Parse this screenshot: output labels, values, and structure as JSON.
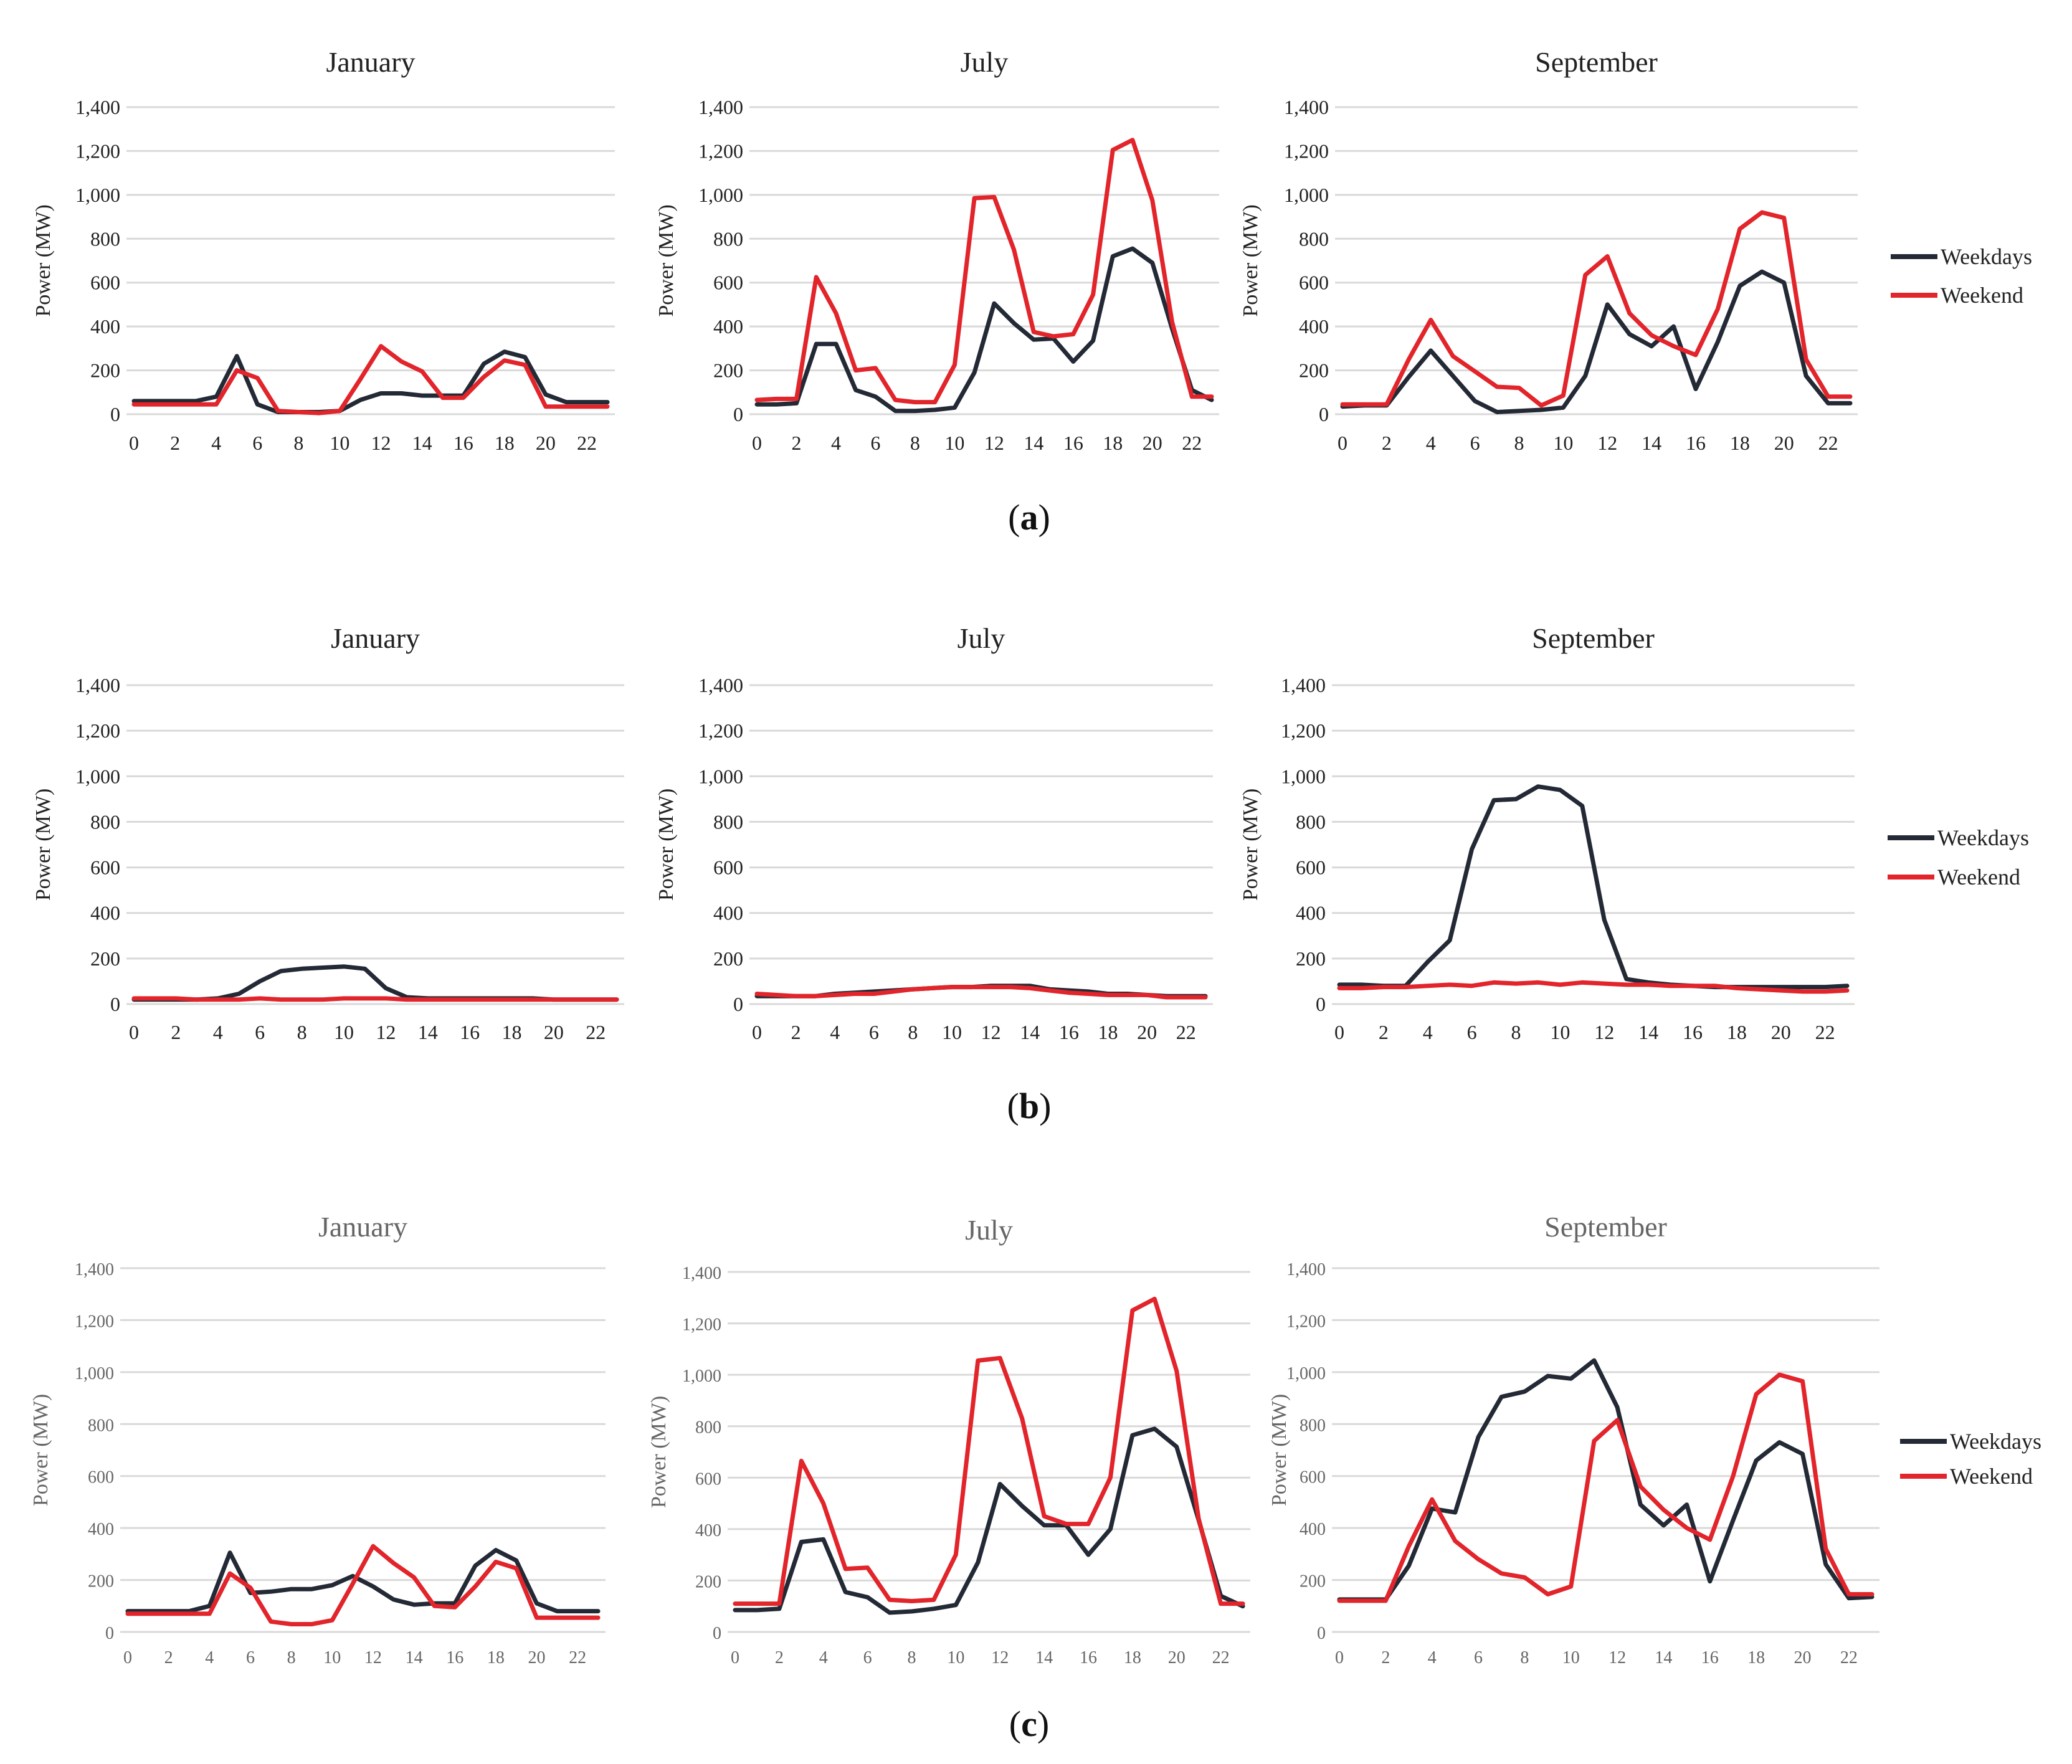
{
  "colors": {
    "weekdays": "#232a36",
    "weekend": "#e2242b",
    "grid": "#d9d9d9"
  },
  "legend": {
    "weekdays": "Weekdays",
    "weekend": "Weekend"
  },
  "panels": [
    {
      "label_pre": "(",
      "label_bold": "a",
      "label_post": ")"
    },
    {
      "label_pre": "(",
      "label_bold": "b",
      "label_post": ")"
    },
    {
      "label_pre": "(",
      "label_bold": "c",
      "label_post": ")"
    }
  ],
  "chart_data": [
    {
      "type": "line",
      "panel": "a",
      "title": "January",
      "xlabel": "",
      "ylabel": "Power (MW)",
      "ylim": [
        0,
        1400
      ],
      "yticks": [
        "0",
        "200",
        "400",
        "600",
        "800",
        "1,000",
        "1,200",
        "1,400"
      ],
      "xticks": [
        "0",
        "2",
        "4",
        "6",
        "8",
        "10",
        "12",
        "14",
        "16",
        "18",
        "20",
        "22"
      ],
      "x": [
        0,
        1,
        2,
        3,
        4,
        5,
        6,
        7,
        8,
        9,
        10,
        11,
        12,
        13,
        14,
        15,
        16,
        17,
        18,
        19,
        20,
        21,
        22,
        23
      ],
      "series": [
        {
          "name": "Weekdays",
          "values": [
            60,
            60,
            60,
            60,
            80,
            265,
            45,
            10,
            10,
            10,
            15,
            65,
            95,
            95,
            85,
            85,
            85,
            230,
            285,
            260,
            90,
            55,
            55,
            55
          ]
        },
        {
          "name": "Weekend",
          "values": [
            45,
            45,
            45,
            45,
            45,
            200,
            165,
            15,
            10,
            5,
            15,
            160,
            310,
            240,
            195,
            75,
            75,
            170,
            245,
            225,
            35,
            35,
            35,
            35
          ]
        }
      ]
    },
    {
      "type": "line",
      "panel": "a",
      "title": "July",
      "xlabel": "",
      "ylabel": "Power (MW)",
      "ylim": [
        0,
        1400
      ],
      "yticks": [
        "0",
        "200",
        "400",
        "600",
        "800",
        "1,000",
        "1,200",
        "1,400"
      ],
      "xticks": [
        "0",
        "2",
        "4",
        "6",
        "8",
        "10",
        "12",
        "14",
        "16",
        "18",
        "20",
        "22"
      ],
      "x": [
        0,
        1,
        2,
        3,
        4,
        5,
        6,
        7,
        8,
        9,
        10,
        11,
        12,
        13,
        14,
        15,
        16,
        17,
        18,
        19,
        20,
        21,
        22,
        23
      ],
      "series": [
        {
          "name": "Weekdays",
          "values": [
            45,
            45,
            50,
            320,
            320,
            110,
            80,
            15,
            15,
            20,
            30,
            190,
            505,
            415,
            340,
            345,
            240,
            335,
            720,
            755,
            690,
            390,
            110,
            65
          ]
        },
        {
          "name": "Weekend",
          "values": [
            65,
            70,
            70,
            625,
            460,
            200,
            210,
            65,
            55,
            55,
            225,
            985,
            990,
            750,
            375,
            355,
            365,
            545,
            1205,
            1250,
            975,
            420,
            80,
            80
          ]
        }
      ]
    },
    {
      "type": "line",
      "panel": "a",
      "title": "September",
      "xlabel": "",
      "ylabel": "Power (MW)",
      "ylim": [
        0,
        1400
      ],
      "yticks": [
        "0",
        "200",
        "400",
        "600",
        "800",
        "1,000",
        "1,200",
        "1,400"
      ],
      "xticks": [
        "0",
        "2",
        "4",
        "6",
        "8",
        "10",
        "12",
        "14",
        "16",
        "18",
        "20",
        "22"
      ],
      "x": [
        0,
        1,
        2,
        3,
        4,
        5,
        6,
        7,
        8,
        9,
        10,
        11,
        12,
        13,
        14,
        15,
        16,
        17,
        18,
        19,
        20,
        21,
        22,
        23
      ],
      "series": [
        {
          "name": "Weekdays",
          "values": [
            35,
            40,
            40,
            170,
            290,
            175,
            60,
            10,
            15,
            20,
            30,
            175,
            500,
            365,
            310,
            400,
            115,
            330,
            585,
            650,
            600,
            175,
            50,
            50
          ]
        },
        {
          "name": "Weekend",
          "values": [
            45,
            45,
            45,
            250,
            430,
            265,
            195,
            125,
            120,
            40,
            85,
            635,
            720,
            460,
            360,
            310,
            270,
            480,
            845,
            920,
            895,
            250,
            80,
            80
          ]
        }
      ]
    },
    {
      "type": "line",
      "panel": "b",
      "title": "January",
      "xlabel": "",
      "ylabel": "Power (MW)",
      "ylim": [
        0,
        1400
      ],
      "yticks": [
        "0",
        "200",
        "400",
        "600",
        "800",
        "1,000",
        "1,200",
        "1,400"
      ],
      "xticks": [
        "0",
        "2",
        "4",
        "6",
        "8",
        "10",
        "12",
        "14",
        "16",
        "18",
        "20",
        "22"
      ],
      "x": [
        0,
        1,
        2,
        3,
        4,
        5,
        6,
        7,
        8,
        9,
        10,
        11,
        12,
        13,
        14,
        15,
        16,
        17,
        18,
        19,
        20,
        21,
        22,
        23
      ],
      "series": [
        {
          "name": "Weekdays",
          "values": [
            20,
            20,
            20,
            20,
            25,
            45,
            100,
            145,
            155,
            160,
            165,
            155,
            70,
            30,
            25,
            25,
            25,
            25,
            25,
            25,
            20,
            20,
            20,
            20
          ]
        },
        {
          "name": "Weekend",
          "values": [
            25,
            25,
            25,
            20,
            20,
            20,
            25,
            20,
            20,
            20,
            25,
            25,
            25,
            20,
            20,
            20,
            20,
            20,
            20,
            20,
            20,
            20,
            20,
            20
          ]
        }
      ]
    },
    {
      "type": "line",
      "panel": "b",
      "title": "July",
      "xlabel": "",
      "ylabel": "Power (MW)",
      "ylim": [
        0,
        1400
      ],
      "yticks": [
        "0",
        "200",
        "400",
        "600",
        "800",
        "1,000",
        "1,200",
        "1,400"
      ],
      "xticks": [
        "0",
        "2",
        "4",
        "6",
        "8",
        "10",
        "12",
        "14",
        "16",
        "18",
        "20",
        "22"
      ],
      "x": [
        0,
        1,
        2,
        3,
        4,
        5,
        6,
        7,
        8,
        9,
        10,
        11,
        12,
        13,
        14,
        15,
        16,
        17,
        18,
        19,
        20,
        21,
        22,
        23
      ],
      "series": [
        {
          "name": "Weekdays",
          "values": [
            35,
            35,
            35,
            35,
            45,
            50,
            55,
            60,
            65,
            70,
            75,
            75,
            80,
            80,
            80,
            65,
            60,
            55,
            45,
            45,
            40,
            35,
            35,
            35
          ]
        },
        {
          "name": "Weekend",
          "values": [
            45,
            40,
            35,
            35,
            40,
            45,
            45,
            55,
            65,
            70,
            75,
            75,
            75,
            75,
            70,
            60,
            50,
            45,
            40,
            40,
            40,
            30,
            30,
            30
          ]
        }
      ]
    },
    {
      "type": "line",
      "panel": "b",
      "title": "September",
      "xlabel": "",
      "ylabel": "Power (MW)",
      "ylim": [
        0,
        1400
      ],
      "yticks": [
        "0",
        "200",
        "400",
        "600",
        "800",
        "1,000",
        "1,200",
        "1,400"
      ],
      "xticks": [
        "0",
        "2",
        "4",
        "6",
        "8",
        "10",
        "12",
        "14",
        "16",
        "18",
        "20",
        "22"
      ],
      "x": [
        0,
        1,
        2,
        3,
        4,
        5,
        6,
        7,
        8,
        9,
        10,
        11,
        12,
        13,
        14,
        15,
        16,
        17,
        18,
        19,
        20,
        21,
        22,
        23
      ],
      "series": [
        {
          "name": "Weekdays",
          "values": [
            85,
            85,
            80,
            80,
            185,
            280,
            680,
            895,
            900,
            955,
            940,
            870,
            370,
            110,
            95,
            85,
            80,
            75,
            75,
            75,
            75,
            75,
            75,
            80
          ]
        },
        {
          "name": "Weekend",
          "values": [
            70,
            70,
            75,
            75,
            80,
            85,
            80,
            95,
            90,
            95,
            85,
            95,
            90,
            85,
            85,
            80,
            80,
            80,
            70,
            65,
            60,
            55,
            55,
            60
          ]
        }
      ]
    },
    {
      "type": "line",
      "panel": "c",
      "title": "January",
      "xlabel": "",
      "ylabel": "Power (MW)",
      "ylim": [
        0,
        1400
      ],
      "yticks": [
        "0",
        "200",
        "400",
        "600",
        "800",
        "1,000",
        "1,200",
        "1,400"
      ],
      "xticks": [
        "0",
        "2",
        "4",
        "6",
        "8",
        "10",
        "12",
        "14",
        "16",
        "18",
        "20",
        "22"
      ],
      "x": [
        0,
        1,
        2,
        3,
        4,
        5,
        6,
        7,
        8,
        9,
        10,
        11,
        12,
        13,
        14,
        15,
        16,
        17,
        18,
        19,
        20,
        21,
        22,
        23
      ],
      "series": [
        {
          "name": "Weekdays",
          "values": [
            80,
            80,
            80,
            80,
            100,
            305,
            150,
            155,
            165,
            165,
            180,
            215,
            175,
            125,
            105,
            110,
            110,
            255,
            315,
            275,
            110,
            80,
            80,
            80
          ]
        },
        {
          "name": "Weekend",
          "values": [
            70,
            70,
            70,
            70,
            70,
            225,
            170,
            40,
            30,
            30,
            45,
            185,
            330,
            265,
            210,
            100,
            95,
            175,
            270,
            245,
            55,
            55,
            55,
            55
          ]
        }
      ]
    },
    {
      "type": "line",
      "panel": "c",
      "title": "July",
      "xlabel": "",
      "ylabel": "Power (MW)",
      "ylim": [
        0,
        1400
      ],
      "yticks": [
        "0",
        "200",
        "400",
        "600",
        "800",
        "1,000",
        "1,200",
        "1,400"
      ],
      "xticks": [
        "0",
        "2",
        "4",
        "6",
        "8",
        "10",
        "12",
        "14",
        "16",
        "18",
        "20",
        "22"
      ],
      "x": [
        0,
        1,
        2,
        3,
        4,
        5,
        6,
        7,
        8,
        9,
        10,
        11,
        12,
        13,
        14,
        15,
        16,
        17,
        18,
        19,
        20,
        21,
        22,
        23
      ],
      "series": [
        {
          "name": "Weekdays",
          "values": [
            85,
            85,
            90,
            350,
            360,
            155,
            135,
            75,
            80,
            90,
            105,
            270,
            575,
            490,
            415,
            415,
            300,
            400,
            765,
            790,
            720,
            435,
            140,
            100
          ]
        },
        {
          "name": "Weekend",
          "values": [
            110,
            110,
            110,
            665,
            500,
            245,
            250,
            125,
            120,
            125,
            300,
            1055,
            1065,
            830,
            450,
            420,
            420,
            600,
            1250,
            1295,
            1015,
            440,
            110,
            110
          ]
        }
      ]
    },
    {
      "type": "line",
      "panel": "c",
      "title": "September",
      "xlabel": "",
      "ylabel": "Power (MW)",
      "ylim": [
        0,
        1400
      ],
      "yticks": [
        "0",
        "200",
        "400",
        "600",
        "800",
        "1,000",
        "1,200",
        "1,400"
      ],
      "xticks": [
        "0",
        "2",
        "4",
        "6",
        "8",
        "10",
        "12",
        "14",
        "16",
        "18",
        "20",
        "22"
      ],
      "x": [
        0,
        1,
        2,
        3,
        4,
        5,
        6,
        7,
        8,
        9,
        10,
        11,
        12,
        13,
        14,
        15,
        16,
        17,
        18,
        19,
        20,
        21,
        22,
        23
      ],
      "series": [
        {
          "name": "Weekdays",
          "values": [
            125,
            125,
            125,
            255,
            475,
            460,
            750,
            905,
            925,
            985,
            975,
            1045,
            865,
            490,
            410,
            490,
            195,
            430,
            660,
            730,
            685,
            260,
            130,
            135
          ]
        },
        {
          "name": "Weekend",
          "values": [
            120,
            120,
            120,
            330,
            510,
            350,
            280,
            225,
            210,
            145,
            175,
            735,
            815,
            560,
            470,
            400,
            355,
            600,
            915,
            990,
            965,
            320,
            145,
            145
          ]
        }
      ]
    }
  ]
}
